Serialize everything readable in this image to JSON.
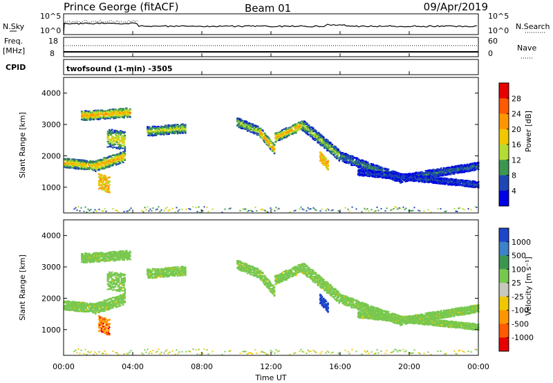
{
  "header": {
    "station": "Prince George (fitACF)",
    "beam": "Beam 01",
    "date": "09/Apr/2019"
  },
  "noise_panel": {
    "left_label": "N.Sky",
    "right_label": "N.Search",
    "tick_top": "10^5",
    "tick_bottom": "10^0"
  },
  "freq_panel": {
    "left_label_1": "Freq.",
    "left_label_2": "[MHz]",
    "left_tick_top": "18",
    "left_tick_bottom": "8",
    "right_label": "Nave",
    "right_tick_top": "60",
    "right_tick_bottom": "0",
    "cpid_label": "CPID"
  },
  "cpid_text": "twofsound (1-min) -3505",
  "x_axis": {
    "title": "Time UT",
    "ticks": [
      "00:00",
      "04:00",
      "08:00",
      "12:00",
      "16:00",
      "20:00",
      "00:00"
    ]
  },
  "power_panel": {
    "ylabel": "Slant Range [km]",
    "yticks": [
      "4000",
      "3000",
      "2000",
      "1000"
    ],
    "colorbar_label": "Power [dB]",
    "colorbar_ticks": [
      "28",
      "24",
      "20",
      "16",
      "12",
      "8",
      "4"
    ],
    "colorbar_colors": [
      "#e60000",
      "#ff5a00",
      "#ff9600",
      "#f0c800",
      "#b4dc32",
      "#3c9650",
      "#1e46b4",
      "#0000e6"
    ]
  },
  "velocity_panel": {
    "ylabel": "Slant Range [km]",
    "yticks": [
      "4000",
      "3000",
      "2000",
      "1000"
    ],
    "colorbar_label": "Velocity [m s⁻¹]",
    "colorbar_ticks": [
      "1000",
      "500",
      "100",
      "25",
      "-25",
      "-100",
      "-500",
      "-1000"
    ],
    "colorbar_colors": [
      "#1e46c8",
      "#3c82c8",
      "#3c9650",
      "#78c850",
      "#c8c8be",
      "#f0c800",
      "#ff9600",
      "#ff5a00",
      "#e60000"
    ]
  },
  "chart_data": {
    "type": "heatmap",
    "title": "Prince George (fitACF) Beam 01 09/Apr/2019",
    "xlabel": "Time UT",
    "ylabel": "Slant Range [km]",
    "xlim_hours": [
      0,
      24
    ],
    "ylim_km": [
      180,
      4500
    ],
    "power_range_db": [
      0,
      32
    ],
    "velocity_range_ms": [
      -1000,
      1000
    ],
    "power_bands": [
      {
        "t_start": 0.0,
        "t_end": 1.8,
        "range_center": [
          1800,
          1700
        ],
        "width_km": 300,
        "power_db": 20
      },
      {
        "t_start": 1.8,
        "t_end": 3.5,
        "range_center": [
          1700,
          2000
        ],
        "width_km": 350,
        "power_db": 22
      },
      {
        "t_start": 1.0,
        "t_end": 3.8,
        "range_center": [
          3300,
          3400
        ],
        "width_km": 300,
        "power_db": 22
      },
      {
        "t_start": 2.5,
        "t_end": 3.5,
        "range_center": [
          2600,
          2500
        ],
        "width_km": 600,
        "power_db": 18
      },
      {
        "t_start": 4.8,
        "t_end": 7.0,
        "range_center": [
          2800,
          2900
        ],
        "width_km": 300,
        "power_db": 16
      },
      {
        "t_start": 10.0,
        "t_end": 11.3,
        "range_center": [
          3100,
          2800
        ],
        "width_km": 300,
        "power_db": 14
      },
      {
        "t_start": 11.3,
        "t_end": 12.2,
        "range_center": [
          2800,
          2200
        ],
        "width_km": 300,
        "power_db": 24
      },
      {
        "t_start": 12.2,
        "t_end": 13.8,
        "range_center": [
          2600,
          3000
        ],
        "width_km": 300,
        "power_db": 22
      },
      {
        "t_start": 13.8,
        "t_end": 16.0,
        "range_center": [
          3000,
          2000
        ],
        "width_km": 350,
        "power_db": 14
      },
      {
        "t_start": 16.0,
        "t_end": 19.5,
        "range_center": [
          2000,
          1300
        ],
        "width_km": 300,
        "power_db": 10
      },
      {
        "t_start": 19.5,
        "t_end": 24.0,
        "range_center": [
          1300,
          1700
        ],
        "width_km": 250,
        "power_db": 8
      },
      {
        "t_start": 17.0,
        "t_end": 24.0,
        "range_center": [
          1500,
          1100
        ],
        "width_km": 200,
        "power_db": 6
      }
    ],
    "velocity_features": [
      {
        "t_start": 2.0,
        "t_end": 2.6,
        "range_center": [
          1200,
          1100
        ],
        "width_km": 500,
        "velocity_ms": -900
      },
      {
        "t_start": 14.8,
        "t_end": 15.3,
        "range_center": [
          2000,
          1700
        ],
        "width_km": 300,
        "velocity_ms": 900
      }
    ]
  }
}
